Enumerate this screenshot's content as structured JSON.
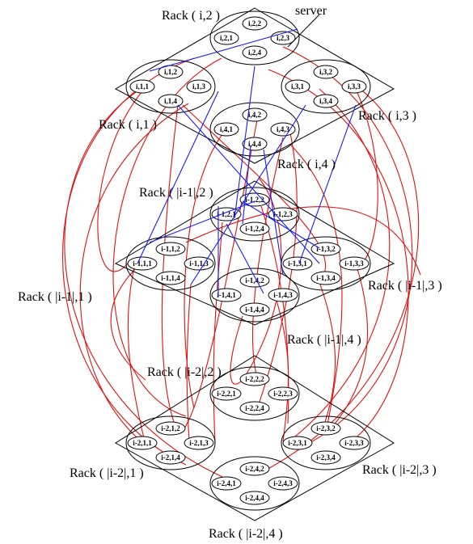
{
  "server_label": "server",
  "colors": {
    "intra_level_link": "#1a1aff",
    "inter_level_link": "#e01010",
    "outline": "#000000"
  },
  "rack_labels": {
    "r_i_1": "Rack ( i,1 )",
    "r_i_2": "Rack ( i,2 )",
    "r_i_3": "Rack ( i,3 )",
    "r_i_4": "Rack ( i,4 )",
    "r_m1_1": "Rack ( |i-1|,1 )",
    "r_m1_2": "Rack ( |i-1|,2 )",
    "r_m1_3": "Rack ( |i-1|,3 )",
    "r_m1_4": "Rack ( |i-1|,4 )",
    "r_m2_1": "Rack ( |i-2|,1 )",
    "r_m2_2": "Rack ( |i-2|,2 )",
    "r_m2_3": "Rack ( |i-2|,3 )",
    "r_m2_4": "Rack ( |i-2|,4 )"
  },
  "servers": {
    "i": {
      "r2": [
        "i,2,1",
        "i,2,2",
        "i,2,3",
        "i,2,4"
      ],
      "r1": [
        "i,1,1",
        "i,1,2",
        "i,1,3",
        "i,1,4"
      ],
      "r3": [
        "i,3,1",
        "i,3,2",
        "i,3,3",
        "i,3,4"
      ],
      "r4": [
        "i,4,1",
        "i,4,2",
        "i,4,3",
        "i,4,4"
      ]
    },
    "m1": {
      "r2": [
        "i-1,2,1",
        "i-1,2,2",
        "i-1,2,3",
        "i-1,2,4"
      ],
      "r1": [
        "i-1,1,1",
        "i-1,1,2",
        "i-1,1,3",
        "i-1,1,4"
      ],
      "r3": [
        "i-1,3,1",
        "i-1,3,2",
        "i-1,3,3",
        "i-1,3,4"
      ],
      "r4": [
        "i-1,4,1",
        "i-1,4,2",
        "i-1,4,3",
        "i-1,4,4"
      ]
    },
    "m2": {
      "r2": [
        "i-2,2,1",
        "i-2,2,2",
        "i-2,2,3",
        "i-2,2,4"
      ],
      "r1": [
        "i-2,1,1",
        "i-2,1,2",
        "i-2,1,3",
        "i-2,1,4"
      ],
      "r3": [
        "i-2,3,1",
        "i-2,3,2",
        "i-2,3,3",
        "i-2,3,4"
      ],
      "r4": [
        "i-2,4,1",
        "i-2,4,2",
        "i-2,4,3",
        "i-2,4,4"
      ]
    }
  }
}
